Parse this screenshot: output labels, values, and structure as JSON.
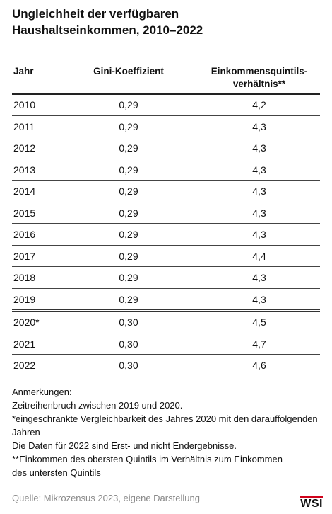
{
  "header": {
    "title": "Ungleichheit der verfügbaren Haushaltseinkommen, 2010–2022"
  },
  "table": {
    "columns": [
      "Jahr",
      "Gini-Koeffizient",
      "Einkommensquintils-\nverhältnis**"
    ],
    "rows": [
      [
        "2010",
        "0,29",
        "4,2"
      ],
      [
        "2011",
        "0,29",
        "4,3"
      ],
      [
        "2012",
        "0,29",
        "4,3"
      ],
      [
        "2013",
        "0,29",
        "4,3"
      ],
      [
        "2014",
        "0,29",
        "4,3"
      ],
      [
        "2015",
        "0,29",
        "4,3"
      ],
      [
        "2016",
        "0,29",
        "4,3"
      ],
      [
        "2017",
        "0,29",
        "4,4"
      ],
      [
        "2018",
        "0,29",
        "4,3"
      ],
      [
        "2019",
        "0,29",
        "4,3"
      ],
      [
        "2020*",
        "0,30",
        "4,5"
      ],
      [
        "2021",
        "0,30",
        "4,7"
      ],
      [
        "2022",
        "0,30",
        "4,6"
      ]
    ]
  },
  "notes": [
    "Anmerkungen:",
    "Zeitreihenbruch zwischen 2019 und 2020.",
    "*eingeschränkte Vergleichbarkeit des Jahres 2020 mit den darauffolgenden Jahren",
    "Die Daten für 2022 sind Erst- und nicht Endergebnisse.",
    "**Einkommen des obersten Quintils im Verhältnis zum Einkommen\ndes untersten Quintils"
  ],
  "footer": {
    "source": "Quelle: Mikrozensus 2023, eigene Darstellung",
    "logo": "WSI"
  }
}
